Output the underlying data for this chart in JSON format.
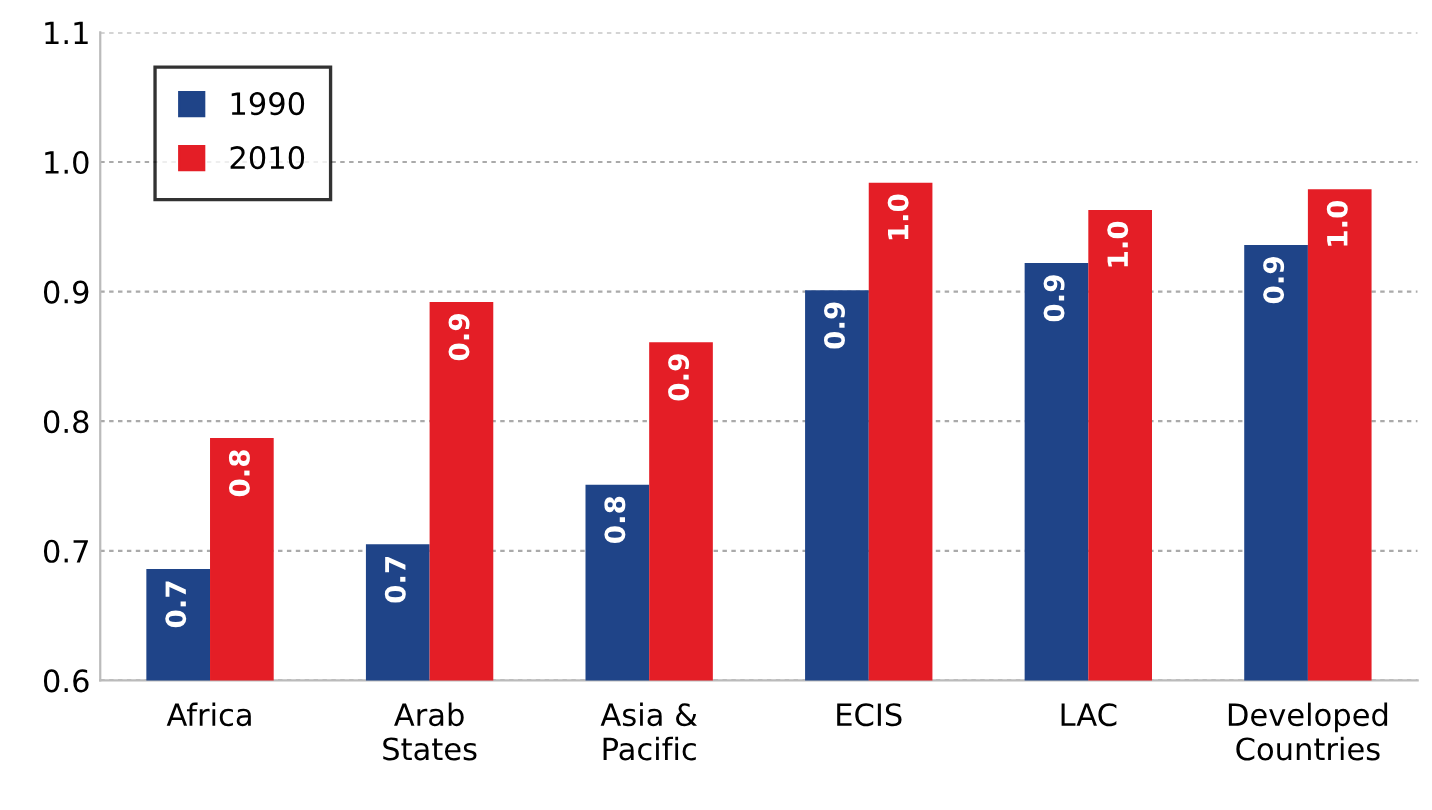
{
  "chart_data": {
    "type": "bar",
    "categories": [
      "Africa",
      "Arab\nStates",
      "Asia &\nPacific",
      "ECIS",
      "LAC",
      "Developed\nCountries"
    ],
    "series": [
      {
        "name": "1990",
        "color": "#1f4488",
        "values": [
          0.686,
          0.705,
          0.751,
          0.901,
          0.922,
          0.936
        ],
        "value_labels": [
          "0.7",
          "0.7",
          "0.8",
          "0.9",
          "0.9",
          "0.9"
        ]
      },
      {
        "name": "2010",
        "color": "#e41e26",
        "values": [
          0.787,
          0.892,
          0.861,
          0.984,
          0.963,
          0.979
        ],
        "value_labels": [
          "0.8",
          "0.9",
          "0.9",
          "1.0",
          "1.0",
          "1.0"
        ]
      }
    ],
    "ylim": [
      0.6,
      1.1
    ],
    "yticks": [
      {
        "value": 0.6,
        "label": "0.6"
      },
      {
        "value": 0.7,
        "label": "0.7"
      },
      {
        "value": 0.8,
        "label": "0.8"
      },
      {
        "value": 0.9,
        "label": "0.9"
      },
      {
        "value": 1.0,
        "label": "1.0"
      },
      {
        "value": 1.1,
        "label": "1.1"
      }
    ],
    "grid": "y",
    "legend": "top left"
  }
}
